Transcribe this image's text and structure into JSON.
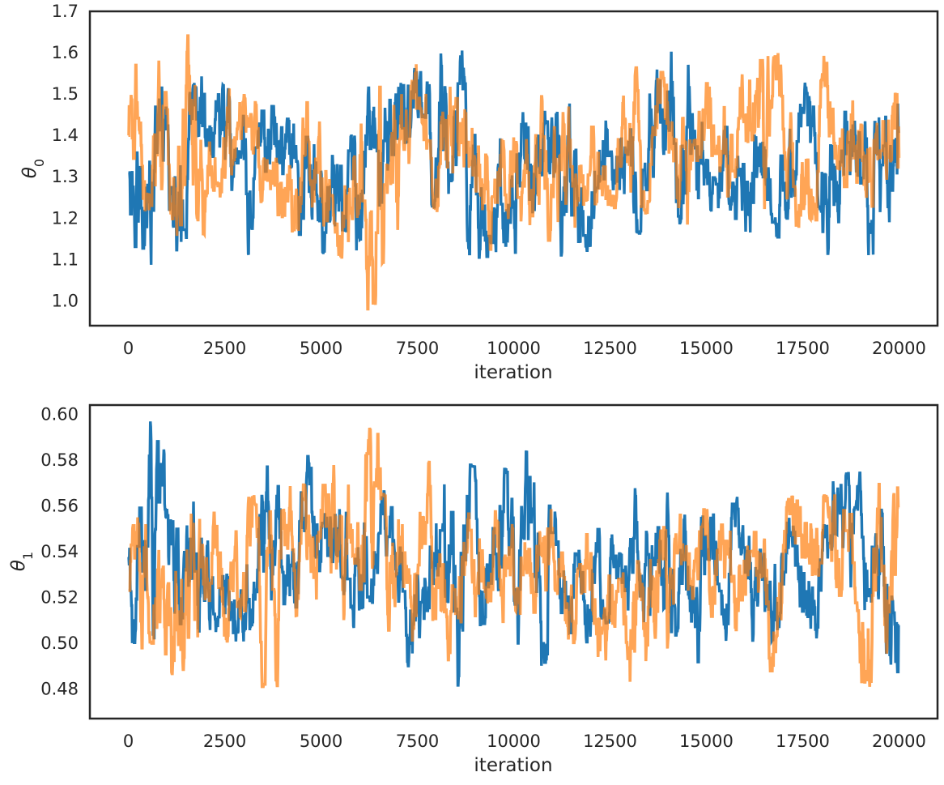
{
  "chart_data": [
    {
      "type": "line",
      "xlabel": "iteration",
      "ylabel": "θ₀",
      "ylabel_symbol": "θ",
      "ylabel_subscript": "0",
      "xlim": [
        -1000,
        21000
      ],
      "ylim": [
        0.94,
        1.7
      ],
      "xticks": [
        0,
        2500,
        5000,
        7500,
        10000,
        12500,
        15000,
        17500,
        20000
      ],
      "yticks": [
        1.0,
        1.1,
        1.2,
        1.3,
        1.4,
        1.5,
        1.6,
        1.7
      ],
      "ytick_labels": [
        "1.0",
        "1.1",
        "1.2",
        "1.3",
        "1.4",
        "1.5",
        "1.6",
        "1.7"
      ],
      "grid": false,
      "n_iterations": 20000,
      "series": [
        {
          "color": "#1f77b4",
          "opacity": 1.0,
          "mean": 1.33,
          "min": 1.02,
          "max": 1.65,
          "stats": [
            {
              "start": 0,
              "end": 1000,
              "mean": 1.31,
              "min": 1.03,
              "max": 1.52
            },
            {
              "start": 1000,
              "end": 2000,
              "mean": 1.38,
              "min": 1.06,
              "max": 1.55
            },
            {
              "start": 2000,
              "end": 3000,
              "mean": 1.36,
              "min": 1.21,
              "max": 1.54
            },
            {
              "start": 3000,
              "end": 4000,
              "mean": 1.25,
              "min": 1.09,
              "max": 1.5
            },
            {
              "start": 4000,
              "end": 5000,
              "mean": 1.23,
              "min": 1.03,
              "max": 1.44
            },
            {
              "start": 5000,
              "end": 6000,
              "mean": 1.24,
              "min": 1.02,
              "max": 1.42
            },
            {
              "start": 6000,
              "end": 7000,
              "mean": 1.36,
              "min": 1.12,
              "max": 1.59
            },
            {
              "start": 7000,
              "end": 8000,
              "mean": 1.39,
              "min": 1.21,
              "max": 1.58
            },
            {
              "start": 8000,
              "end": 9000,
              "mean": 1.37,
              "min": 1.06,
              "max": 1.61
            },
            {
              "start": 9000,
              "end": 10000,
              "mean": 1.28,
              "min": 1.1,
              "max": 1.5
            },
            {
              "start": 10000,
              "end": 11000,
              "mean": 1.27,
              "min": 1.08,
              "max": 1.46
            },
            {
              "start": 11000,
              "end": 12000,
              "mean": 1.3,
              "min": 1.1,
              "max": 1.48
            },
            {
              "start": 12000,
              "end": 13000,
              "mean": 1.32,
              "min": 1.17,
              "max": 1.52
            },
            {
              "start": 13000,
              "end": 14000,
              "mean": 1.36,
              "min": 1.16,
              "max": 1.57
            },
            {
              "start": 14000,
              "end": 15000,
              "mean": 1.38,
              "min": 1.18,
              "max": 1.65
            },
            {
              "start": 15000,
              "end": 16000,
              "mean": 1.31,
              "min": 1.16,
              "max": 1.5
            },
            {
              "start": 16000,
              "end": 17000,
              "mean": 1.29,
              "min": 1.15,
              "max": 1.52
            },
            {
              "start": 17000,
              "end": 18000,
              "mean": 1.32,
              "min": 1.18,
              "max": 1.54
            },
            {
              "start": 18000,
              "end": 19000,
              "mean": 1.3,
              "min": 1.11,
              "max": 1.53
            },
            {
              "start": 19000,
              "end": 20000,
              "mean": 1.27,
              "min": 1.1,
              "max": 1.54
            }
          ]
        },
        {
          "color": "#ff7f0e",
          "opacity": 0.7,
          "mean": 1.34,
          "min": 0.97,
          "max": 1.67,
          "stats": [
            {
              "start": 0,
              "end": 1000,
              "mean": 1.4,
              "min": 1.22,
              "max": 1.61
            },
            {
              "start": 1000,
              "end": 2000,
              "mean": 1.39,
              "min": 1.15,
              "max": 1.67
            },
            {
              "start": 2000,
              "end": 3000,
              "mean": 1.36,
              "min": 1.25,
              "max": 1.55
            },
            {
              "start": 3000,
              "end": 4000,
              "mean": 1.32,
              "min": 1.2,
              "max": 1.5
            },
            {
              "start": 4000,
              "end": 5000,
              "mean": 1.33,
              "min": 1.15,
              "max": 1.5
            },
            {
              "start": 5000,
              "end": 6000,
              "mean": 1.27,
              "min": 1.1,
              "max": 1.42
            },
            {
              "start": 6000,
              "end": 7000,
              "mean": 1.24,
              "min": 0.97,
              "max": 1.57
            },
            {
              "start": 7000,
              "end": 8000,
              "mean": 1.38,
              "min": 1.22,
              "max": 1.6
            },
            {
              "start": 8000,
              "end": 9000,
              "mean": 1.4,
              "min": 1.18,
              "max": 1.6
            },
            {
              "start": 9000,
              "end": 10000,
              "mean": 1.3,
              "min": 1.12,
              "max": 1.47
            },
            {
              "start": 10000,
              "end": 11000,
              "mean": 1.3,
              "min": 1.12,
              "max": 1.5
            },
            {
              "start": 11000,
              "end": 12000,
              "mean": 1.3,
              "min": 1.05,
              "max": 1.47
            },
            {
              "start": 12000,
              "end": 13000,
              "mean": 1.39,
              "min": 1.22,
              "max": 1.6
            },
            {
              "start": 13000,
              "end": 14000,
              "mean": 1.43,
              "min": 1.2,
              "max": 1.64
            },
            {
              "start": 14000,
              "end": 15000,
              "mean": 1.33,
              "min": 1.17,
              "max": 1.54
            },
            {
              "start": 15000,
              "end": 16000,
              "mean": 1.34,
              "min": 1.18,
              "max": 1.56
            },
            {
              "start": 16000,
              "end": 17000,
              "mean": 1.35,
              "min": 1.12,
              "max": 1.6
            },
            {
              "start": 17000,
              "end": 18000,
              "mean": 1.36,
              "min": 1.17,
              "max": 1.54
            },
            {
              "start": 18000,
              "end": 19000,
              "mean": 1.39,
              "min": 1.2,
              "max": 1.6
            },
            {
              "start": 19000,
              "end": 20000,
              "mean": 1.36,
              "min": 1.11,
              "max": 1.55
            }
          ]
        }
      ]
    },
    {
      "type": "line",
      "xlabel": "iteration",
      "ylabel": "θ₁",
      "ylabel_symbol": "θ",
      "ylabel_subscript": "1",
      "xlim": [
        -1000,
        21000
      ],
      "ylim": [
        0.467,
        0.604
      ],
      "xticks": [
        0,
        2500,
        5000,
        7500,
        10000,
        12500,
        15000,
        17500,
        20000
      ],
      "yticks": [
        0.48,
        0.5,
        0.52,
        0.54,
        0.56,
        0.58,
        0.6
      ],
      "ytick_labels": [
        "0.48",
        "0.50",
        "0.52",
        "0.54",
        "0.56",
        "0.58",
        "0.60"
      ],
      "grid": false,
      "n_iterations": 20000,
      "series": [
        {
          "color": "#1f77b4",
          "opacity": 1.0,
          "mean": 0.532,
          "min": 0.477,
          "max": 0.598,
          "stats": [
            {
              "start": 0,
              "end": 1000,
              "mean": 0.537,
              "min": 0.5,
              "max": 0.598
            },
            {
              "start": 1000,
              "end": 2000,
              "mean": 0.528,
              "min": 0.495,
              "max": 0.565
            },
            {
              "start": 2000,
              "end": 3000,
              "mean": 0.524,
              "min": 0.5,
              "max": 0.56
            },
            {
              "start": 3000,
              "end": 4000,
              "mean": 0.54,
              "min": 0.505,
              "max": 0.58
            },
            {
              "start": 4000,
              "end": 5000,
              "mean": 0.545,
              "min": 0.515,
              "max": 0.588
            },
            {
              "start": 5000,
              "end": 6000,
              "mean": 0.541,
              "min": 0.505,
              "max": 0.577
            },
            {
              "start": 6000,
              "end": 7000,
              "mean": 0.535,
              "min": 0.5,
              "max": 0.57
            },
            {
              "start": 7000,
              "end": 8000,
              "mean": 0.525,
              "min": 0.49,
              "max": 0.56
            },
            {
              "start": 8000,
              "end": 9000,
              "mean": 0.532,
              "min": 0.477,
              "max": 0.585
            },
            {
              "start": 9000,
              "end": 10000,
              "mean": 0.54,
              "min": 0.5,
              "max": 0.58
            },
            {
              "start": 10000,
              "end": 11000,
              "mean": 0.535,
              "min": 0.49,
              "max": 0.59
            },
            {
              "start": 11000,
              "end": 12000,
              "mean": 0.529,
              "min": 0.5,
              "max": 0.56
            },
            {
              "start": 12000,
              "end": 13000,
              "mean": 0.53,
              "min": 0.505,
              "max": 0.565
            },
            {
              "start": 13000,
              "end": 14000,
              "mean": 0.535,
              "min": 0.5,
              "max": 0.57
            },
            {
              "start": 14000,
              "end": 15000,
              "mean": 0.525,
              "min": 0.48,
              "max": 0.56
            },
            {
              "start": 15000,
              "end": 16000,
              "mean": 0.532,
              "min": 0.5,
              "max": 0.565
            },
            {
              "start": 16000,
              "end": 17000,
              "mean": 0.53,
              "min": 0.5,
              "max": 0.56
            },
            {
              "start": 17000,
              "end": 18000,
              "mean": 0.532,
              "min": 0.5,
              "max": 0.57
            },
            {
              "start": 18000,
              "end": 19000,
              "mean": 0.545,
              "min": 0.505,
              "max": 0.575
            },
            {
              "start": 19000,
              "end": 20000,
              "mean": 0.53,
              "min": 0.48,
              "max": 0.57
            }
          ]
        },
        {
          "color": "#ff7f0e",
          "opacity": 0.7,
          "mean": 0.53,
          "min": 0.473,
          "max": 0.595,
          "stats": [
            {
              "start": 0,
              "end": 1000,
              "mean": 0.523,
              "min": 0.485,
              "max": 0.555
            },
            {
              "start": 1000,
              "end": 2000,
              "mean": 0.52,
              "min": 0.48,
              "max": 0.568
            },
            {
              "start": 2000,
              "end": 3000,
              "mean": 0.525,
              "min": 0.5,
              "max": 0.56
            },
            {
              "start": 3000,
              "end": 4000,
              "mean": 0.524,
              "min": 0.48,
              "max": 0.565
            },
            {
              "start": 4000,
              "end": 5000,
              "mean": 0.54,
              "min": 0.51,
              "max": 0.57
            },
            {
              "start": 5000,
              "end": 6000,
              "mean": 0.54,
              "min": 0.505,
              "max": 0.58
            },
            {
              "start": 6000,
              "end": 7000,
              "mean": 0.548,
              "min": 0.49,
              "max": 0.595
            },
            {
              "start": 7000,
              "end": 8000,
              "mean": 0.53,
              "min": 0.5,
              "max": 0.585
            },
            {
              "start": 8000,
              "end": 9000,
              "mean": 0.525,
              "min": 0.49,
              "max": 0.56
            },
            {
              "start": 9000,
              "end": 10000,
              "mean": 0.532,
              "min": 0.5,
              "max": 0.56
            },
            {
              "start": 10000,
              "end": 11000,
              "mean": 0.53,
              "min": 0.5,
              "max": 0.56
            },
            {
              "start": 11000,
              "end": 12000,
              "mean": 0.533,
              "min": 0.5,
              "max": 0.56
            },
            {
              "start": 12000,
              "end": 13000,
              "mean": 0.52,
              "min": 0.485,
              "max": 0.555
            },
            {
              "start": 13000,
              "end": 14000,
              "mean": 0.515,
              "min": 0.473,
              "max": 0.555
            },
            {
              "start": 14000,
              "end": 15000,
              "mean": 0.53,
              "min": 0.5,
              "max": 0.56
            },
            {
              "start": 15000,
              "end": 16000,
              "mean": 0.53,
              "min": 0.5,
              "max": 0.56
            },
            {
              "start": 16000,
              "end": 17000,
              "mean": 0.522,
              "min": 0.485,
              "max": 0.56
            },
            {
              "start": 17000,
              "end": 18000,
              "mean": 0.533,
              "min": 0.5,
              "max": 0.565
            },
            {
              "start": 18000,
              "end": 19000,
              "mean": 0.53,
              "min": 0.49,
              "max": 0.565
            },
            {
              "start": 19000,
              "end": 20000,
              "mean": 0.53,
              "min": 0.48,
              "max": 0.573
            }
          ]
        }
      ]
    }
  ]
}
